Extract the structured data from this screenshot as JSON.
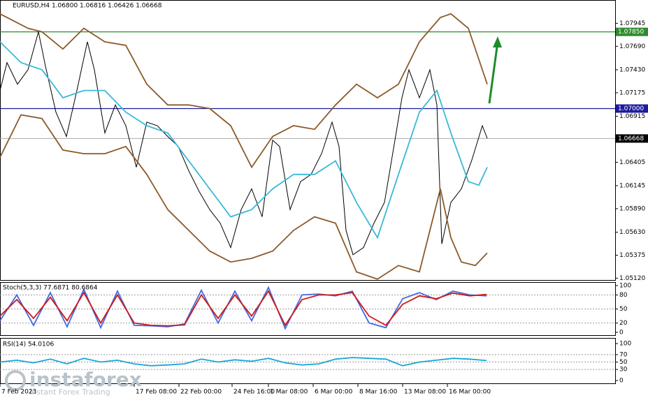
{
  "chart_data": [
    {
      "type": "line",
      "title": "EURUSD,H4 1.06800 1.06816 1.06426 1.06668",
      "ylim": [
        1.051,
        1.0818
      ],
      "yticks": [
        1.07945,
        {
          "value": 1.0769,
          "label": "1.07690"
        },
        {
          "value": 1.0743,
          "label": "1.07430"
        },
        1.07175,
        1.06915,
        1.06405,
        1.06145,
        {
          "value": 1.0589,
          "label": "1.05890"
        },
        {
          "value": 1.0563,
          "label": "1.05630"
        },
        1.05375,
        {
          "value": 1.0512,
          "label": "1.05120"
        }
      ],
      "xlim": [
        0,
        220
      ],
      "xticks": [
        {
          "value": 0,
          "label": "7 Feb 2023"
        },
        {
          "value": 48,
          "label": "17 Feb 08:00"
        },
        {
          "value": 64,
          "label": "22 Feb 00:00"
        },
        {
          "value": 83,
          "label": "24 Feb 16:00"
        },
        {
          "value": 96,
          "label": "1 Mar 08:00"
        },
        {
          "value": 112,
          "label": "6 Mar 00:00"
        },
        {
          "value": 128,
          "label": "8 Mar 16:00"
        },
        {
          "value": 144,
          "label": "13 Mar 08:00"
        },
        {
          "value": 160,
          "label": "16 Mar 00:00"
        }
      ],
      "grid": false,
      "levels": [
        {
          "value": 1.0785,
          "label": "1.07850",
          "color": "#2e8b2e"
        },
        {
          "value": 1.07,
          "label": "1.07000",
          "color": "#1c1c9c"
        },
        {
          "value": 1.06668,
          "color": "#000000"
        }
      ],
      "series": [
        {
          "color": "#000000",
          "x": [
            0,
            2.5,
            6.25,
            10,
            13.75,
            16.25,
            20,
            23.75,
            27.5,
            31.25,
            33.75,
            37.5,
            41.25,
            45,
            48.75,
            52.5,
            56.25,
            60,
            63.75,
            67.5,
            71.25,
            75,
            78.75,
            82.5,
            86.25,
            90,
            93.75,
            97.5,
            100,
            103.75,
            107.5,
            111.25,
            115,
            118.75,
            121.25,
            123.75,
            126.25,
            130,
            133.75,
            137.5,
            141.25,
            143.75,
            146.25,
            150,
            153.75,
            156.25,
            158,
            161.25,
            165,
            168.75,
            172.5,
            174.25
          ],
          "values": [
            1.072,
            1.0751,
            1.0727,
            1.0743,
            1.0785,
            1.0747,
            1.0696,
            1.0669,
            1.072,
            1.0774,
            1.0743,
            1.0673,
            1.0704,
            1.0681,
            1.0635,
            1.0685,
            1.0681,
            1.0669,
            1.0658,
            1.0631,
            1.0608,
            1.0588,
            1.0573,
            1.0546,
            1.0588,
            1.0611,
            1.058,
            1.0665,
            1.0658,
            1.0588,
            1.0619,
            1.0627,
            1.065,
            1.0685,
            1.0658,
            1.0565,
            1.0538,
            1.0546,
            1.0573,
            1.0596,
            1.0665,
            1.0712,
            1.0743,
            1.0712,
            1.0743,
            1.0704,
            1.055,
            1.0596,
            1.0611,
            1.0643,
            1.0681,
            1.0667
          ]
        },
        {
          "color": "#8b5a2b",
          "x": [
            0,
            10,
            15,
            22.5,
            30,
            37.5,
            45,
            52.5,
            60,
            67.5,
            75,
            82.5,
            90,
            97.5,
            105,
            112.5,
            120,
            127.5,
            135,
            142.5,
            150,
            157.5,
            161.25,
            167.5,
            174.25
          ],
          "values": [
            1.0805,
            1.0789,
            1.0785,
            1.0766,
            1.0789,
            1.0774,
            1.077,
            1.0727,
            1.0704,
            1.0704,
            1.07,
            1.0681,
            1.0635,
            1.0669,
            1.0681,
            1.0677,
            1.0704,
            1.0727,
            1.0712,
            1.0727,
            1.0774,
            1.0801,
            1.0805,
            1.0789,
            1.0727
          ]
        },
        {
          "color": "#8b5a2b",
          "x": [
            0,
            7.5,
            15,
            22.5,
            30,
            37.5,
            45,
            52.5,
            60,
            67.5,
            75,
            82.5,
            90,
            97.5,
            105,
            112.5,
            120,
            127.5,
            135,
            142.5,
            150,
            157.5,
            161.25,
            165,
            170,
            174.25
          ],
          "values": [
            1.0646,
            1.0693,
            1.0689,
            1.0654,
            1.065,
            1.065,
            1.0658,
            1.0627,
            1.0588,
            1.0565,
            1.0542,
            1.053,
            1.0534,
            1.0542,
            1.0565,
            1.058,
            1.0573,
            1.0519,
            1.0511,
            1.0526,
            1.0519,
            1.0611,
            1.0557,
            1.053,
            1.0526,
            1.054
          ]
        },
        {
          "color": "#3ab8d8",
          "x": [
            0,
            7.5,
            15,
            22.5,
            30,
            37.5,
            45,
            52.5,
            60,
            67.5,
            75,
            82.5,
            90,
            97.5,
            105,
            112.5,
            120,
            127.5,
            135,
            142.5,
            150,
            156.25,
            161.25,
            167.5,
            171.25,
            174.25
          ],
          "values": [
            1.0774,
            1.0751,
            1.0743,
            1.0712,
            1.072,
            1.072,
            1.0696,
            1.0681,
            1.0673,
            1.0642,
            1.0611,
            1.058,
            1.0588,
            1.0611,
            1.0627,
            1.0627,
            1.0642,
            1.0596,
            1.0557,
            1.0627,
            1.0696,
            1.072,
            1.0673,
            1.0619,
            1.0615,
            1.0635
          ]
        }
      ]
    },
    {
      "type": "line",
      "title": "Stoch(5,3,3) 77.6871 80.6864",
      "ylim": [
        0,
        100
      ],
      "yticks": [
        0,
        20,
        50,
        80,
        100
      ],
      "xlim": [
        0,
        220
      ],
      "grid": true,
      "x": [
        0,
        6,
        12,
        18,
        24,
        30,
        36,
        42,
        48,
        54,
        60,
        66,
        72,
        78,
        84,
        90,
        96,
        102,
        108,
        114,
        120,
        126,
        132,
        138,
        144,
        150,
        156,
        162,
        168,
        174
      ],
      "series": [
        {
          "color": "#4169e1",
          "values": [
            25,
            80,
            15,
            85,
            12,
            92,
            10,
            88,
            15,
            14,
            12,
            18,
            90,
            20,
            88,
            25,
            96,
            8,
            80,
            82,
            78,
            88,
            20,
            10,
            72,
            85,
            70,
            88,
            80,
            78
          ]
        },
        {
          "color": "#d01818",
          "values": [
            35,
            70,
            30,
            75,
            25,
            85,
            20,
            80,
            20,
            15,
            14,
            16,
            80,
            30,
            80,
            35,
            88,
            15,
            70,
            80,
            80,
            85,
            35,
            15,
            60,
            78,
            72,
            84,
            78,
            81
          ]
        }
      ]
    },
    {
      "type": "line",
      "title": "RSI(14) 54.0106",
      "ylim": [
        0,
        100
      ],
      "yticks": [
        0,
        30,
        50,
        70,
        100
      ],
      "xlim": [
        0,
        220
      ],
      "grid": true,
      "x": [
        0,
        6,
        12,
        18,
        24,
        30,
        36,
        42,
        48,
        54,
        60,
        66,
        72,
        78,
        84,
        90,
        96,
        102,
        108,
        114,
        120,
        126,
        132,
        138,
        144,
        150,
        156,
        162,
        168,
        174
      ],
      "series": [
        {
          "color": "#1aa6d6",
          "values": [
            50,
            55,
            48,
            58,
            45,
            60,
            50,
            55,
            45,
            40,
            42,
            45,
            58,
            50,
            56,
            52,
            60,
            48,
            42,
            45,
            58,
            62,
            60,
            58,
            40,
            50,
            55,
            60,
            58,
            54
          ]
        }
      ]
    }
  ],
  "watermark": {
    "brand": "instaforex",
    "tagline": "Instant Forex Trading"
  }
}
